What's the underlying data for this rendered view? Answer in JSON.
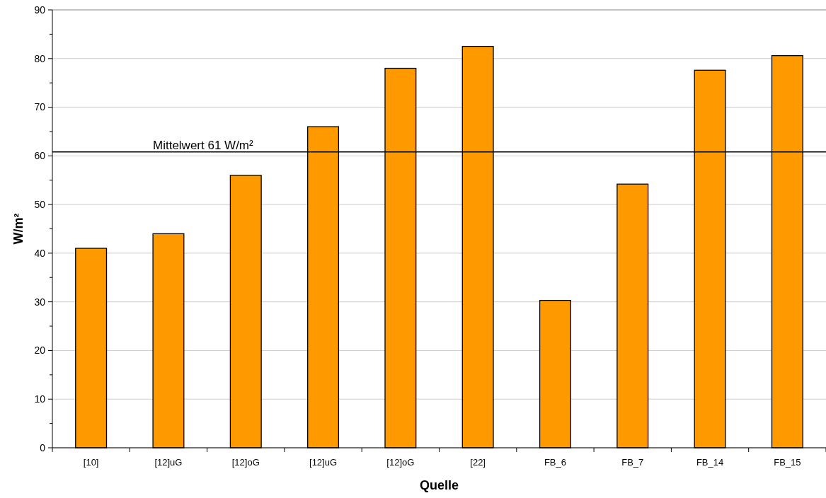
{
  "chart_data": {
    "type": "bar",
    "xlabel": "Quelle",
    "ylabel": "W/m²",
    "categories": [
      "[10]",
      "[12]uG",
      "[12]oG",
      "[12]uG",
      "[12]oG",
      "[22]",
      "FB_6",
      "FB_7",
      "FB_14",
      "FB_15"
    ],
    "values": [
      41,
      44,
      56,
      66,
      78,
      82.5,
      30.3,
      54.2,
      77.6,
      80.6
    ],
    "color": "#ff9900",
    "ylim": [
      0,
      90
    ],
    "yticks": [
      0,
      {
        "value": 5,
        "label": null
      },
      10,
      {
        "value": 15,
        "label": null
      },
      20,
      {
        "value": 25,
        "label": null
      },
      30,
      {
        "value": 35,
        "label": null
      },
      40,
      {
        "value": 45,
        "label": null
      },
      50,
      {
        "value": 55,
        "label": null
      },
      60,
      {
        "value": 65,
        "label": null
      },
      70,
      {
        "value": 75,
        "label": null
      },
      80,
      {
        "value": 85,
        "label": null
      },
      90
    ],
    "grid": "y",
    "ref_lines": [
      {
        "axis": "y",
        "value": 60.8,
        "label": "Mittelwert 61 W/m²",
        "color": "#000000"
      }
    ]
  }
}
